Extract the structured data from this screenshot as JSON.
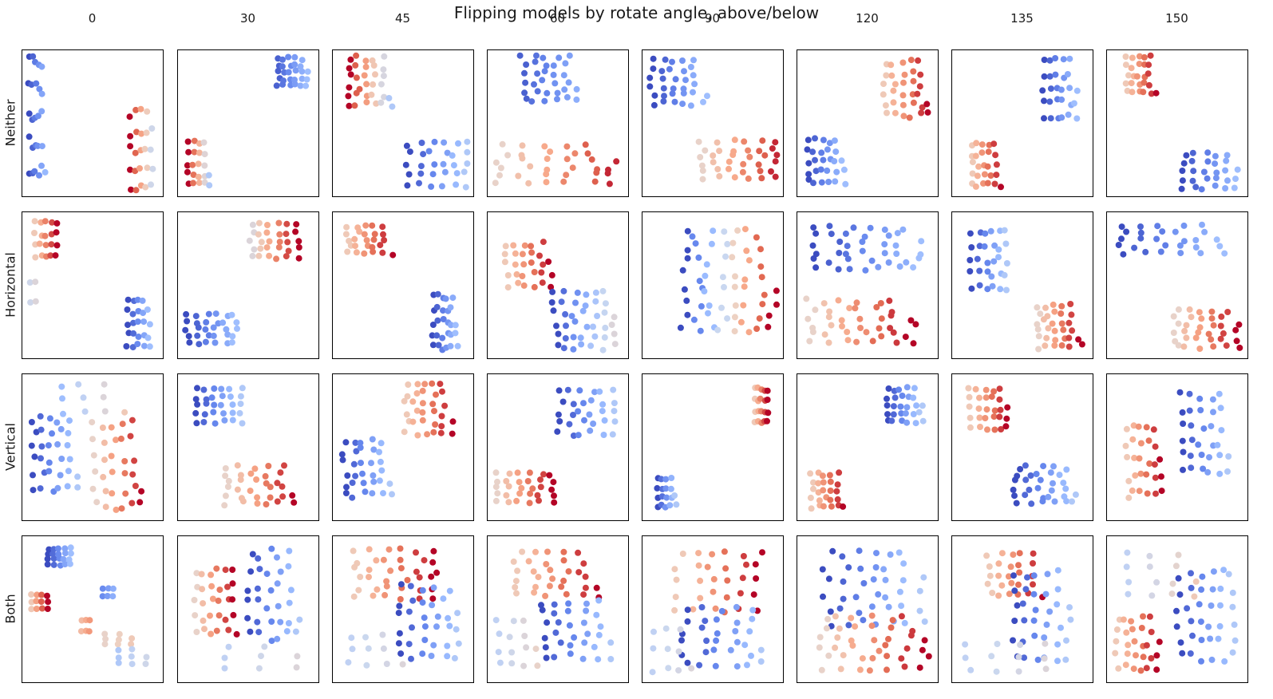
{
  "figure": {
    "title": "Flipping models by rotate angle, above/below",
    "col_labels": [
      "0",
      "30",
      "45",
      "60",
      "90",
      "120",
      "135",
      "150"
    ],
    "row_labels": [
      "Neither",
      "Horizontal",
      "Vertical",
      "Both"
    ]
  },
  "colormap": [
    "#3b4cc0",
    "#6788ee",
    "#9abbff",
    "#c9d7f0",
    "#edd1c2",
    "#f7a889",
    "#e26952",
    "#b40426"
  ],
  "chart_data": {
    "type": "scatter",
    "layout": "grid",
    "rows": [
      "Neither",
      "Horizontal",
      "Vertical",
      "Both"
    ],
    "cols": [
      "0",
      "30",
      "45",
      "60",
      "90",
      "120",
      "135",
      "150"
    ],
    "xlim": [
      0,
      1
    ],
    "ylim": [
      0,
      1
    ],
    "color_encoding": "coolwarm",
    "cells": {
      "Neither": [
        {
          "clusters": [
            [
              0.08,
              0.55,
              0.06,
              0.4,
              0.0,
              0.28,
              26
            ],
            [
              0.87,
              0.3,
              0.08,
              0.27,
              1.0,
              0.45,
              24
            ]
          ]
        },
        {
          "clusters": [
            [
              0.13,
              0.2,
              0.08,
              0.15,
              1.0,
              0.35,
              22
            ],
            [
              0.84,
              0.87,
              0.11,
              0.1,
              0.05,
              0.3,
              28
            ]
          ]
        },
        {
          "clusters": [
            [
              0.25,
              0.8,
              0.16,
              0.17,
              1.0,
              0.35,
              32
            ],
            [
              0.77,
              0.2,
              0.22,
              0.15,
              0.0,
              0.35,
              30
            ]
          ]
        },
        {
          "clusters": [
            [
              0.45,
              0.83,
              0.21,
              0.16,
              0.05,
              0.25,
              32
            ],
            [
              0.5,
              0.2,
              0.42,
              0.13,
              0.55,
              0.95,
              34
            ]
          ]
        },
        {
          "clusters": [
            [
              0.24,
              0.8,
              0.2,
              0.16,
              0.0,
              0.3,
              32
            ],
            [
              0.7,
              0.23,
              0.28,
              0.13,
              0.55,
              0.95,
              36
            ]
          ]
        },
        {
          "clusters": [
            [
              0.18,
              0.22,
              0.14,
              0.15,
              0.0,
              0.3,
              28
            ],
            [
              0.8,
              0.75,
              0.17,
              0.19,
              0.6,
              1.0,
              32
            ]
          ]
        },
        {
          "clusters": [
            [
              0.79,
              0.75,
              0.12,
              0.2,
              0.0,
              0.3,
              28
            ],
            [
              0.23,
              0.2,
              0.11,
              0.15,
              0.6,
              1.0,
              26
            ]
          ]
        },
        {
          "clusters": [
            [
              0.23,
              0.85,
              0.11,
              0.13,
              0.6,
              1.0,
              26
            ],
            [
              0.75,
              0.15,
              0.19,
              0.12,
              0.0,
              0.3,
              28
            ]
          ]
        }
      ],
      "Horizontal": [
        {
          "clusters": [
            [
              0.15,
              0.83,
              0.08,
              0.12,
              0.6,
              1.0,
              20
            ],
            [
              0.05,
              0.45,
              0.02,
              0.07,
              0.45,
              0.5,
              4
            ],
            [
              0.85,
              0.22,
              0.08,
              0.17,
              0.0,
              0.3,
              24
            ]
          ]
        },
        {
          "clusters": [
            [
              0.7,
              0.82,
              0.17,
              0.12,
              0.5,
              1.0,
              30
            ],
            [
              0.22,
              0.18,
              0.18,
              0.1,
              0.0,
              0.3,
              30
            ]
          ]
        },
        {
          "clusters": [
            [
              0.25,
              0.83,
              0.16,
              0.1,
              0.6,
              1.0,
              26
            ],
            [
              0.82,
              0.23,
              0.09,
              0.19,
              0.0,
              0.3,
              28
            ]
          ]
        },
        {
          "clusters": [
            [
              0.28,
              0.65,
              0.16,
              0.15,
              0.6,
              1.0,
              28
            ],
            [
              0.7,
              0.25,
              0.22,
              0.2,
              0.0,
              0.5,
              40
            ]
          ]
        },
        {
          "clusters": [
            [
              0.62,
              0.52,
              0.33,
              0.35,
              0.0,
              1.0,
              60
            ]
          ]
        },
        {
          "clusters": [
            [
              0.5,
              0.77,
              0.38,
              0.15,
              0.0,
              0.3,
              40
            ],
            [
              0.45,
              0.23,
              0.38,
              0.15,
              0.55,
              1.0,
              40
            ]
          ]
        },
        {
          "clusters": [
            [
              0.25,
              0.68,
              0.13,
              0.2,
              0.0,
              0.35,
              30
            ],
            [
              0.78,
              0.2,
              0.16,
              0.15,
              0.55,
              1.0,
              32
            ]
          ]
        },
        {
          "clusters": [
            [
              0.45,
              0.83,
              0.38,
              0.1,
              0.0,
              0.3,
              28
            ],
            [
              0.72,
              0.18,
              0.23,
              0.13,
              0.55,
              1.0,
              34
            ]
          ]
        }
      ],
      "Vertical": [
        {
          "clusters": [
            [
              0.22,
              0.45,
              0.16,
              0.25,
              0.0,
              0.35,
              32
            ],
            [
              0.7,
              0.37,
              0.18,
              0.3,
              0.55,
              1.0,
              32
            ],
            [
              0.5,
              0.85,
              0.25,
              0.1,
              0.3,
              0.6,
              10
            ]
          ]
        },
        {
          "clusters": [
            [
              0.28,
              0.8,
              0.16,
              0.12,
              0.0,
              0.35,
              30
            ],
            [
              0.6,
              0.22,
              0.25,
              0.13,
              0.55,
              1.0,
              32
            ]
          ]
        },
        {
          "clusters": [
            [
              0.7,
              0.78,
              0.17,
              0.18,
              0.6,
              1.0,
              32
            ],
            [
              0.23,
              0.35,
              0.17,
              0.2,
              0.0,
              0.35,
              32
            ]
          ]
        },
        {
          "clusters": [
            [
              0.72,
              0.75,
              0.2,
              0.15,
              0.0,
              0.35,
              30
            ],
            [
              0.25,
              0.2,
              0.2,
              0.1,
              0.55,
              1.0,
              30
            ]
          ]
        },
        {
          "clusters": [
            [
              0.87,
              0.8,
              0.05,
              0.12,
              0.6,
              1.0,
              20
            ],
            [
              0.15,
              0.17,
              0.07,
              0.1,
              0.0,
              0.35,
              18
            ]
          ]
        },
        {
          "clusters": [
            [
              0.78,
              0.8,
              0.13,
              0.12,
              0.0,
              0.35,
              28
            ],
            [
              0.2,
              0.18,
              0.12,
              0.12,
              0.6,
              1.0,
              26
            ]
          ]
        },
        {
          "clusters": [
            [
              0.25,
              0.78,
              0.14,
              0.14,
              0.6,
              1.0,
              28
            ],
            [
              0.68,
              0.22,
              0.22,
              0.13,
              0.0,
              0.35,
              32
            ]
          ]
        },
        {
          "clusters": [
            [
              0.25,
              0.4,
              0.13,
              0.25,
              0.6,
              1.0,
              28
            ],
            [
              0.72,
              0.6,
              0.18,
              0.28,
              0.0,
              0.35,
              32
            ]
          ]
        }
      ],
      "Both": [
        {
          "clusters": [
            [
              0.25,
              0.88,
              0.08,
              0.06,
              0.0,
              0.3,
              20
            ],
            [
              0.1,
              0.55,
              0.06,
              0.05,
              0.6,
              1.0,
              12
            ],
            [
              0.62,
              0.62,
              0.04,
              0.03,
              0.15,
              0.25,
              6
            ],
            [
              0.45,
              0.38,
              0.03,
              0.04,
              0.65,
              0.75,
              6
            ],
            [
              0.7,
              0.28,
              0.1,
              0.04,
              0.55,
              0.6,
              8
            ],
            [
              0.8,
              0.15,
              0.1,
              0.05,
              0.35,
              0.45,
              8
            ]
          ]
        },
        {
          "clusters": [
            [
              0.25,
              0.55,
              0.15,
              0.22,
              0.55,
              1.0,
              30
            ],
            [
              0.7,
              0.6,
              0.18,
              0.3,
              0.0,
              0.35,
              32
            ],
            [
              0.6,
              0.15,
              0.25,
              0.08,
              0.4,
              0.5,
              8
            ]
          ]
        },
        {
          "clusters": [
            [
              0.45,
              0.75,
              0.3,
              0.17,
              0.6,
              1.0,
              36
            ],
            [
              0.7,
              0.4,
              0.22,
              0.25,
              0.0,
              0.35,
              34
            ],
            [
              0.3,
              0.2,
              0.2,
              0.1,
              0.4,
              0.5,
              10
            ]
          ]
        },
        {
          "clusters": [
            [
              0.5,
              0.75,
              0.3,
              0.15,
              0.6,
              1.0,
              32
            ],
            [
              0.65,
              0.35,
              0.25,
              0.2,
              0.0,
              0.35,
              32
            ],
            [
              0.2,
              0.25,
              0.15,
              0.15,
              0.4,
              0.55,
              14
            ]
          ]
        },
        {
          "clusters": [
            [
              0.55,
              0.7,
              0.3,
              0.2,
              0.6,
              1.0,
              30
            ],
            [
              0.6,
              0.3,
              0.3,
              0.2,
              0.0,
              0.35,
              32
            ],
            [
              0.2,
              0.2,
              0.15,
              0.15,
              0.4,
              0.5,
              10
            ]
          ]
        },
        {
          "clusters": [
            [
              0.55,
              0.65,
              0.35,
              0.25,
              0.0,
              0.35,
              40
            ],
            [
              0.55,
              0.25,
              0.38,
              0.18,
              0.55,
              1.0,
              40
            ]
          ]
        },
        {
          "clusters": [
            [
              0.45,
              0.75,
              0.2,
              0.15,
              0.6,
              1.0,
              26
            ],
            [
              0.65,
              0.45,
              0.2,
              0.3,
              0.0,
              0.35,
              34
            ],
            [
              0.4,
              0.15,
              0.3,
              0.1,
              0.4,
              0.5,
              12
            ]
          ]
        },
        {
          "clusters": [
            [
              0.2,
              0.25,
              0.15,
              0.18,
              0.6,
              1.0,
              28
            ],
            [
              0.72,
              0.45,
              0.2,
              0.3,
              0.0,
              0.35,
              36
            ],
            [
              0.4,
              0.75,
              0.25,
              0.15,
              0.4,
              0.6,
              14
            ]
          ]
        }
      ]
    }
  }
}
